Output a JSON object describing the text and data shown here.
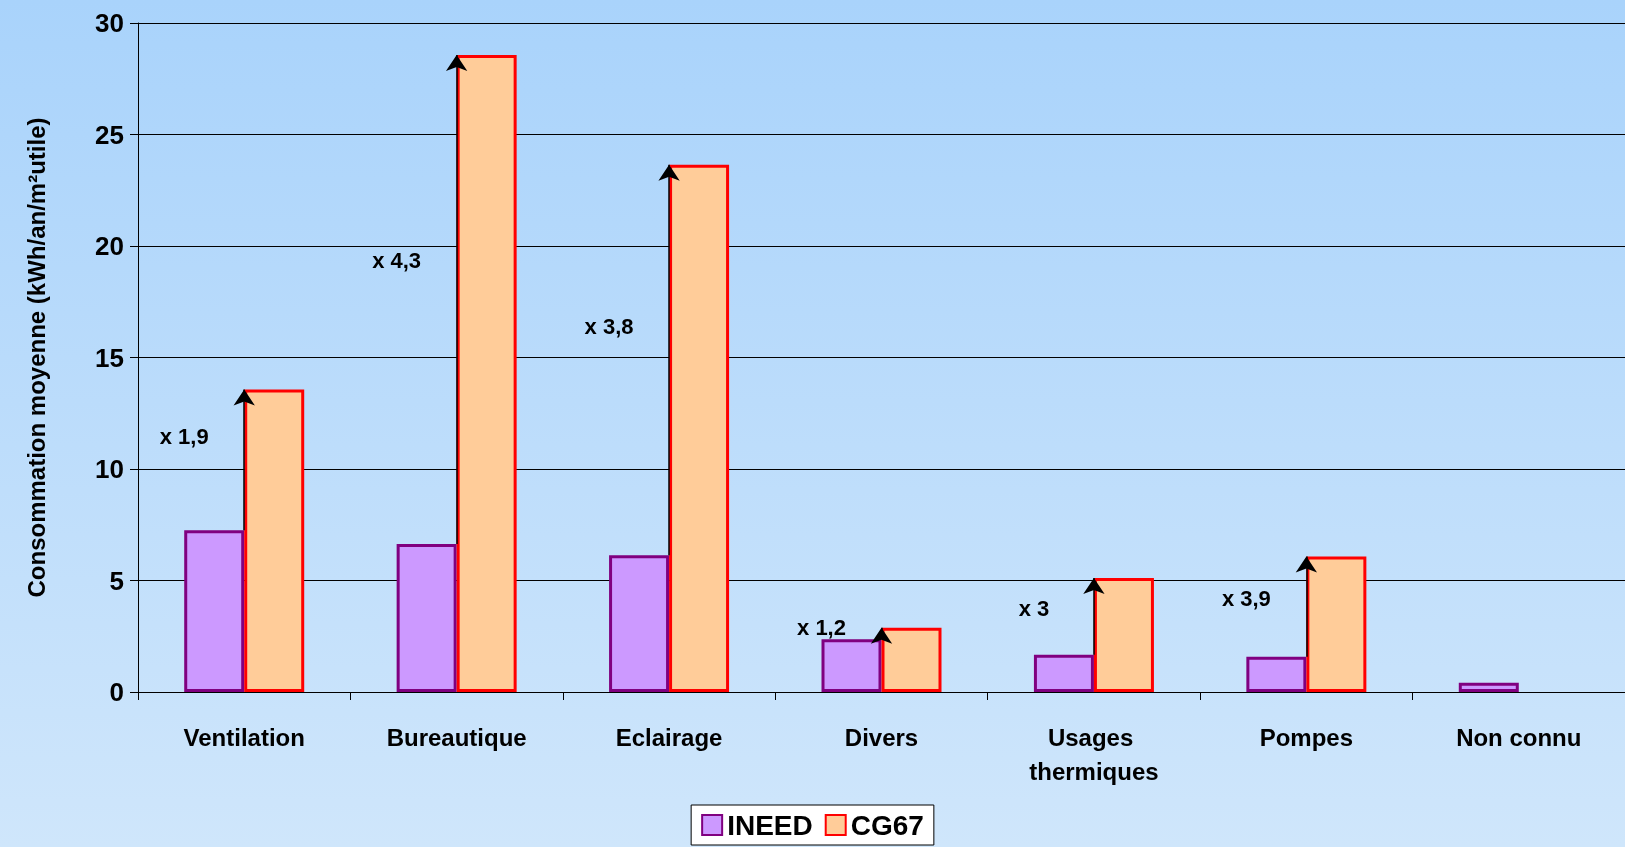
{
  "chart_data": {
    "type": "bar",
    "ylabel": "Consommation moyenne (kWh/an/m²utile)",
    "categories": [
      "Ventilation",
      "Bureautique",
      "Eclairage",
      "Divers",
      "Usages thermiques",
      "Pompes",
      "Non connu"
    ],
    "series": [
      {
        "name": "INEED",
        "color": "#cc99ff",
        "values": [
          7.25,
          6.64,
          6.13,
          2.37,
          1.67,
          1.58,
          0.42
        ]
      },
      {
        "name": "CG67",
        "color": "#ffcc99",
        "values": [
          13.56,
          28.56,
          23.64,
          2.88,
          5.11,
          6.08,
          null
        ]
      }
    ],
    "ylim": [
      0,
      30
    ],
    "yticks": [
      0,
      5,
      10,
      15,
      20,
      25,
      30
    ],
    "grid": "y",
    "legend": "bottom",
    "annotations": [
      "x 1,9",
      "x 4,3",
      "x 3,8",
      "x 1,2",
      "x 3",
      "x 3,9"
    ]
  }
}
